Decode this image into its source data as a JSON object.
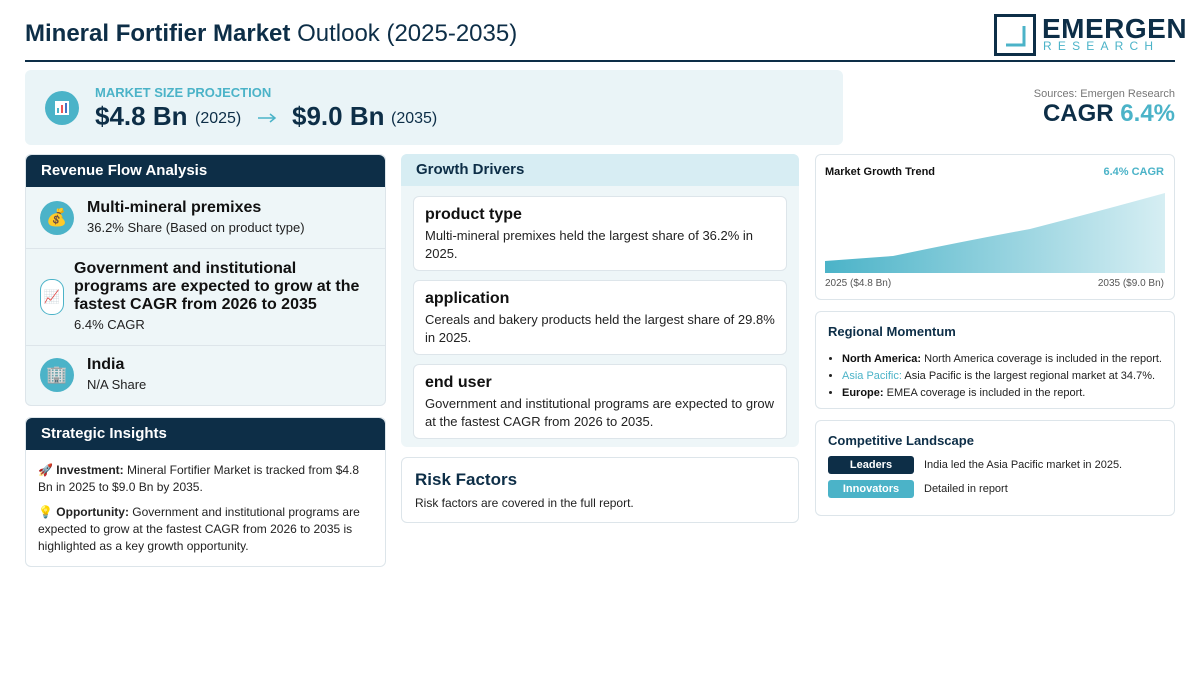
{
  "header": {
    "title_bold": "Mineral Fortifier Market",
    "title_rest": "Outlook (2025-2035)",
    "logo_name": "EMERGEN",
    "logo_sub": "RESEARCH"
  },
  "projection": {
    "label": "MARKET SIZE PROJECTION",
    "start_value": "$4.8 Bn",
    "start_year": "(2025)",
    "end_value": "$9.0 Bn",
    "end_year": "(2035)"
  },
  "sources": "Sources: Emergen Research",
  "cagr": {
    "label": "CAGR",
    "value": "6.4%"
  },
  "revenue_flow": {
    "title": "Revenue Flow Analysis",
    "items": [
      {
        "icon": "💰",
        "title": "Multi-mineral premixes",
        "detail": "36.2% Share (Based on product type)"
      },
      {
        "icon": "📈",
        "title": "Government and institutional programs are expected to grow at the fastest CAGR from 2026 to 2035",
        "detail": "6.4% CAGR"
      },
      {
        "icon": "🏢",
        "title": "India",
        "detail": "N/A Share"
      }
    ]
  },
  "strategic_insights": {
    "title": "Strategic Insights",
    "items": [
      {
        "icon": "🚀",
        "label": "Investment:",
        "text": "Mineral Fortifier Market is tracked from $4.8 Bn in 2025 to $9.0 Bn by 2035."
      },
      {
        "icon": "💡",
        "label": "Opportunity:",
        "text": "Government and institutional programs are expected to grow at the fastest CAGR from 2026 to 2035 is highlighted as a key growth opportunity."
      }
    ]
  },
  "growth_drivers": {
    "title": "Growth Drivers",
    "items": [
      {
        "title": "product type",
        "text": "Multi-mineral premixes held the largest share of 36.2% in 2025."
      },
      {
        "title": "application",
        "text": "Cereals and bakery products held the largest share of 29.8% in 2025."
      },
      {
        "title": "end user",
        "text": "Government and institutional programs are expected to grow at the fastest CAGR from 2026 to 2035."
      }
    ]
  },
  "risk_factors": {
    "title": "Risk Factors",
    "text": "Risk factors are covered in the full report."
  },
  "trend": {
    "title": "Market Growth Trend",
    "cagr": "6.4% CAGR",
    "start_label": "2025 ($4.8 Bn)",
    "end_label": "2035 ($9.0 Bn)"
  },
  "regional": {
    "title": "Regional Momentum",
    "items": [
      {
        "region": "North America:",
        "text": "North America coverage is included in the report."
      },
      {
        "region": "Asia Pacific:",
        "text": "Asia Pacific is the largest regional market at 34.7%."
      },
      {
        "region": "Europe:",
        "text": "EMEA coverage is included in the report."
      }
    ]
  },
  "competitive": {
    "title": "Competitive Landscape",
    "items": [
      {
        "badge": "Leaders",
        "text": "India led the Asia Pacific market in 2025."
      },
      {
        "badge": "Innovators",
        "text": "Detailed in report"
      }
    ]
  }
}
